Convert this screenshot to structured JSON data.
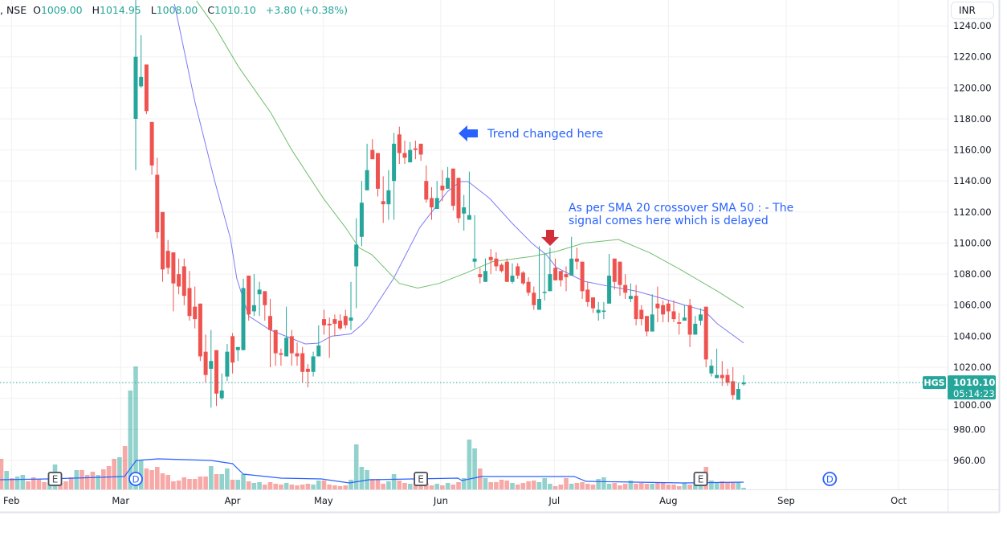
{
  "header": {
    "symbol_suffix": ", NSE",
    "open_label": "O",
    "open": "1009.00",
    "high_label": "H",
    "high": "1014.95",
    "low_label": "L",
    "low": "1008.00",
    "close_label": "C",
    "close": "1010.10",
    "change": "+3.80 (+0.38%)"
  },
  "currency_button": "INR",
  "colors": {
    "up": "#26a69a",
    "down": "#ef5350",
    "sma20": "#7b7bf5",
    "sma50": "#6fbf6f",
    "volume_ma": "#2962ff",
    "annotation": "#2962ff",
    "signal_arrow": "#d12f3a"
  },
  "chart_data": {
    "type": "candlestick",
    "title": "",
    "ylim": [
      941.3,
      1256.6
    ],
    "grid": true,
    "y_ticks": [
      "1240.00",
      "1220.00",
      "1200.00",
      "1180.00",
      "1160.00",
      "1140.00",
      "1120.00",
      "1100.00",
      "1080.00",
      "1060.00",
      "1040.00",
      "1020.00",
      "1000.00",
      "980.00",
      "960.00"
    ],
    "month_ticks": [
      {
        "label": "Feb",
        "bar": 1.9
      },
      {
        "label": "Mar",
        "bar": 22.2
      },
      {
        "label": "Apr",
        "bar": 43
      },
      {
        "label": "May",
        "bar": 59.9
      },
      {
        "label": "Jun",
        "bar": 81.7
      },
      {
        "label": "Jul",
        "bar": 102.8
      },
      {
        "label": "Aug",
        "bar": 124
      },
      {
        "label": "Sep",
        "bar": 145.9
      },
      {
        "label": "Oct",
        "bar": 166.8
      }
    ],
    "candles": [
      {
        "offscreen": "down"
      },
      {
        "offscreen": "up"
      },
      {
        "offscreen": "down"
      },
      {
        "offscreen": "up"
      },
      {
        "offscreen": "up"
      },
      {
        "offscreen": "down"
      },
      {
        "offscreen": "down"
      },
      {
        "offscreen": "down"
      },
      {
        "offscreen": "down"
      },
      {
        "offscreen": "up"
      },
      {
        "offscreen": "up"
      },
      {
        "offscreen": "down"
      },
      {
        "offscreen": "down"
      },
      {
        "offscreen": "down"
      },
      {
        "offscreen": "up"
      },
      {
        "offscreen": "down"
      },
      {
        "offscreen": "down"
      },
      {
        "offscreen": "down"
      },
      {
        "offscreen": "up"
      },
      {
        "offscreen": "down"
      },
      {
        "offscreen": "down"
      },
      {
        "offscreen": "down"
      },
      {
        "offscreen": "up"
      },
      {
        "offscreen": "down"
      },
      {
        "offscreen": "up"
      },
      [
        1180,
        1260,
        1147,
        1220
      ],
      [
        1201,
        1234,
        1200,
        1207
      ],
      [
        1215,
        1215,
        1183,
        1185
      ],
      [
        1178,
        1178,
        1144,
        1150
      ],
      [
        1144,
        1155,
        1103,
        1107
      ],
      [
        1120,
        1120,
        1075,
        1083
      ],
      [
        1095,
        1102,
        1080,
        1084
      ],
      [
        1094,
        1094,
        1056,
        1074
      ],
      [
        1080,
        1090,
        1067,
        1072
      ],
      [
        1085,
        1090,
        1060,
        1066
      ],
      [
        1071,
        1082,
        1050,
        1053
      ],
      [
        1059,
        1072,
        1045,
        1051
      ],
      [
        1061,
        1061,
        1024,
        1027
      ],
      [
        1030,
        1041,
        1010,
        1015
      ],
      [
        1019,
        1044,
        994,
        1024
      ],
      [
        1031,
        1031,
        995,
        1003
      ],
      [
        1000,
        1016,
        999,
        1005
      ],
      [
        1014,
        1035,
        1011,
        1030
      ],
      [
        1040,
        1042,
        1016,
        1023
      ],
      [
        1031,
        1033,
        1024,
        1033
      ],
      [
        1031,
        1077,
        1031,
        1071
      ],
      [
        1079,
        1079,
        1050,
        1054
      ],
      [
        1056,
        1080,
        1053,
        1060
      ],
      [
        1067,
        1075,
        1053,
        1070
      ],
      [
        1069,
        1069,
        1050,
        1060
      ],
      [
        1053,
        1064,
        1020,
        1044
      ],
      [
        1044,
        1044,
        1021,
        1029
      ],
      [
        1029,
        1032,
        1021,
        1028
      ],
      [
        1027,
        1059,
        1027,
        1039
      ],
      [
        1040,
        1044,
        1021,
        1029
      ],
      [
        1029,
        1036,
        1021,
        1027
      ],
      [
        1029,
        1033,
        1010,
        1017
      ],
      [
        1019,
        1022,
        1007,
        1017
      ],
      [
        1017,
        1030,
        1014,
        1027
      ],
      [
        1027,
        1047,
        1027,
        1034
      ],
      [
        1051,
        1057,
        1041,
        1047
      ],
      [
        1048,
        1052,
        1026,
        1047
      ],
      [
        1051,
        1054,
        1040,
        1048
      ],
      [
        1050,
        1054,
        1044,
        1045
      ],
      [
        1053,
        1057,
        1045,
        1047
      ],
      [
        1050,
        1075,
        1044,
        1052
      ],
      [
        1085,
        1116,
        1058,
        1099
      ],
      [
        1104,
        1140,
        1098,
        1126
      ],
      [
        1134,
        1164,
        1134,
        1147
      ],
      [
        1160,
        1167,
        1154,
        1154
      ],
      [
        1158,
        1158,
        1130,
        1135
      ],
      [
        1127,
        1143,
        1113,
        1125
      ],
      [
        1125,
        1147,
        1115,
        1134
      ],
      [
        1140,
        1171,
        1115,
        1164
      ],
      [
        1170,
        1175,
        1151,
        1158
      ],
      [
        1158,
        1166,
        1151,
        1155
      ],
      [
        1152,
        1165,
        1152,
        1160
      ],
      [
        1161,
        1166,
        1154,
        1160
      ],
      [
        1164,
        1164,
        1153,
        1157
      ],
      [
        1140,
        1150,
        1126,
        1128
      ],
      [
        1129,
        1136,
        1115,
        1123
      ],
      [
        1122,
        1140,
        1122,
        1129
      ],
      [
        1137,
        1147,
        1127,
        1134
      ],
      [
        1135,
        1149,
        1135,
        1142
      ],
      [
        1148,
        1148,
        1121,
        1124
      ],
      [
        1142,
        1142,
        1113,
        1116
      ],
      [
        1119,
        1131,
        1108,
        1123
      ],
      [
        1115,
        1146,
        1115,
        1118
      ],
      [
        1088,
        1118,
        1084,
        1090
      ],
      [
        1080,
        1084,
        1074,
        1078
      ],
      [
        1075,
        1090,
        1075,
        1082
      ],
      [
        1091,
        1096,
        1080,
        1089
      ],
      [
        1090,
        1094,
        1082,
        1085
      ],
      [
        1086,
        1087,
        1081,
        1082
      ],
      [
        1088,
        1090,
        1075,
        1075
      ],
      [
        1075,
        1087,
        1074,
        1079
      ],
      [
        1085,
        1087,
        1077,
        1079
      ],
      [
        1081,
        1082,
        1073,
        1074
      ],
      [
        1075,
        1078,
        1066,
        1068
      ],
      [
        1068,
        1072,
        1057,
        1060
      ],
      [
        1057,
        1098,
        1057,
        1064
      ],
      [
        1068,
        1093,
        1063,
        1068.6
      ],
      [
        1069,
        1097,
        1069,
        1080
      ],
      [
        1084,
        1090,
        1076,
        1076
      ],
      [
        1082,
        1082,
        1072,
        1076
      ],
      [
        1080,
        1085,
        1069,
        1078
      ],
      [
        1079,
        1104,
        1079,
        1090
      ],
      [
        1090,
        1097,
        1083,
        1088
      ],
      [
        1088,
        1088,
        1064,
        1069
      ],
      [
        1070,
        1075,
        1059,
        1062
      ],
      [
        1065,
        1065,
        1055,
        1058
      ],
      [
        1055,
        1062,
        1050,
        1057
      ],
      [
        1056,
        1062,
        1051,
        1056.5
      ],
      [
        1061,
        1093,
        1061,
        1079
      ],
      [
        1090,
        1090,
        1070,
        1075
      ],
      [
        1088,
        1088,
        1066,
        1073
      ],
      [
        1073,
        1080,
        1064,
        1068
      ],
      [
        1064,
        1074,
        1062,
        1066
      ],
      [
        1066,
        1073,
        1047,
        1051
      ],
      [
        1057,
        1060,
        1047,
        1051
      ],
      [
        1053,
        1053,
        1040,
        1043
      ],
      [
        1043,
        1067,
        1043,
        1054
      ],
      [
        1061,
        1072,
        1049,
        1058
      ],
      [
        1060,
        1063,
        1049,
        1054
      ],
      [
        1061,
        1063,
        1049,
        1056
      ],
      [
        1056,
        1063,
        1049,
        1051
      ],
      [
        1049,
        1055,
        1041,
        1048
      ],
      [
        1050,
        1060,
        1050,
        1052
      ],
      [
        1060,
        1064,
        1033,
        1041
      ],
      [
        1041,
        1053,
        1041,
        1048
      ],
      [
        1050,
        1058,
        1047,
        1054
      ],
      [
        1059,
        1059,
        1020,
        1025
      ],
      [
        1016,
        1025,
        1014,
        1021
      ],
      [
        1013,
        1032,
        1013,
        1015
      ],
      [
        1015,
        1024,
        1008,
        1013
      ],
      [
        1015,
        1019,
        1008,
        1010
      ],
      [
        1011,
        1020,
        999,
        1002
      ],
      [
        999,
        1010,
        999,
        1006
      ],
      [
        1009,
        1014.95,
        1008,
        1010.1
      ]
    ],
    "volume": [
      38,
      23,
      14,
      16,
      18,
      10,
      15,
      13,
      9,
      8,
      31,
      8,
      10,
      15,
      24,
      24,
      18,
      22,
      18,
      25,
      29,
      38,
      40,
      54,
      123,
      153,
      37,
      26,
      24,
      28,
      20,
      18,
      10,
      11,
      15,
      13,
      13,
      16,
      16,
      29,
      19,
      19,
      26,
      12,
      12,
      19,
      10,
      8,
      9,
      6,
      9,
      7,
      6,
      8,
      6,
      5,
      6,
      7,
      6,
      11,
      11,
      6,
      5,
      4,
      5,
      12,
      56,
      28,
      24,
      13,
      13,
      7,
      10,
      19,
      11,
      8,
      7,
      6,
      6,
      8,
      5,
      7,
      5,
      8,
      6,
      9,
      14,
      62,
      51,
      26,
      14,
      9,
      9,
      12,
      11,
      8,
      6,
      8,
      10,
      11,
      9,
      14,
      7,
      4,
      6,
      14,
      7,
      8,
      9,
      7,
      6,
      13,
      15,
      7,
      8,
      5,
      7,
      11,
      7,
      8,
      7,
      7,
      8,
      8,
      6,
      6,
      4,
      8,
      6,
      6,
      6,
      28,
      11,
      9,
      10,
      9,
      9,
      9,
      2
    ],
    "series": [
      {
        "name": "SMA 20",
        "points": [
          [
            32.2,
            1254
          ],
          [
            36,
            1191
          ],
          [
            39.6,
            1141
          ],
          [
            42.6,
            1103
          ],
          [
            43.8,
            1077
          ],
          [
            46,
            1053
          ],
          [
            50,
            1044
          ],
          [
            56.5,
            1035
          ],
          [
            59,
            1035.5
          ],
          [
            61.4,
            1040
          ],
          [
            65,
            1041.5
          ],
          [
            66.9,
            1047
          ],
          [
            68,
            1051
          ],
          [
            72.9,
            1077
          ],
          [
            77.8,
            1110
          ],
          [
            82.9,
            1133
          ],
          [
            85.3,
            1139.6
          ],
          [
            86.8,
            1139.6
          ],
          [
            90.8,
            1128.7
          ],
          [
            94.9,
            1113
          ],
          [
            98.7,
            1099.7
          ],
          [
            101.3,
            1092.5
          ],
          [
            103.2,
            1084.2
          ],
          [
            108.3,
            1075.4
          ],
          [
            113.2,
            1072
          ],
          [
            118.1,
            1069
          ],
          [
            123.2,
            1064
          ],
          [
            127.1,
            1060
          ],
          [
            130.7,
            1056.4
          ],
          [
            133.1,
            1048
          ],
          [
            138,
            1035.6
          ]
        ]
      },
      {
        "name": "SMA 50",
        "points": [
          [
            36.3,
            1256
          ],
          [
            39.6,
            1240
          ],
          [
            44.1,
            1213.6
          ],
          [
            50.1,
            1184
          ],
          [
            54,
            1160
          ],
          [
            59.9,
            1128.7
          ],
          [
            64,
            1110
          ],
          [
            66.5,
            1097
          ],
          [
            68.9,
            1092.5
          ],
          [
            74,
            1074
          ],
          [
            77.4,
            1071
          ],
          [
            81.4,
            1074
          ],
          [
            86.3,
            1080.6
          ],
          [
            91.3,
            1088
          ],
          [
            98.7,
            1091.4
          ],
          [
            103.2,
            1094.6
          ],
          [
            108.3,
            1100
          ],
          [
            114.7,
            1102.3
          ],
          [
            120.7,
            1093.5
          ],
          [
            126.2,
            1083
          ],
          [
            133.1,
            1069
          ],
          [
            138,
            1058.3
          ]
        ]
      }
    ],
    "volume_ma": [
      [
        -0.2,
        12
      ],
      [
        8.7,
        13
      ],
      [
        22.9,
        16
      ],
      [
        25.1,
        36
      ],
      [
        29.2,
        38
      ],
      [
        39,
        36
      ],
      [
        43,
        32
      ],
      [
        45,
        19
      ],
      [
        52,
        14
      ],
      [
        59.5,
        13
      ],
      [
        64.7,
        8
      ],
      [
        68.4,
        12
      ],
      [
        84.9,
        14
      ],
      [
        85.6,
        11
      ],
      [
        89.3,
        16
      ],
      [
        106.5,
        16
      ],
      [
        108.7,
        10
      ],
      [
        126.6,
        8
      ],
      [
        138,
        9
      ]
    ],
    "event_markers": [
      {
        "label": "E",
        "bar": 10
      },
      {
        "label": "D",
        "bar": 25
      },
      {
        "label": "E",
        "bar": 78
      },
      {
        "label": "E",
        "bar": 130
      },
      {
        "label": "D",
        "bar": 154
      }
    ],
    "last_price": {
      "symbol": "HGS",
      "price": "1010.10",
      "value": 1010.1,
      "countdown": "05:14:23"
    },
    "annotations": [
      {
        "text": "Trend changed here",
        "arrow": "left"
      },
      {
        "lines": [
          "As per SMA 20 crossover SMA 50 : - The",
          "signal comes here which is delayed"
        ],
        "arrow": "down"
      }
    ]
  }
}
